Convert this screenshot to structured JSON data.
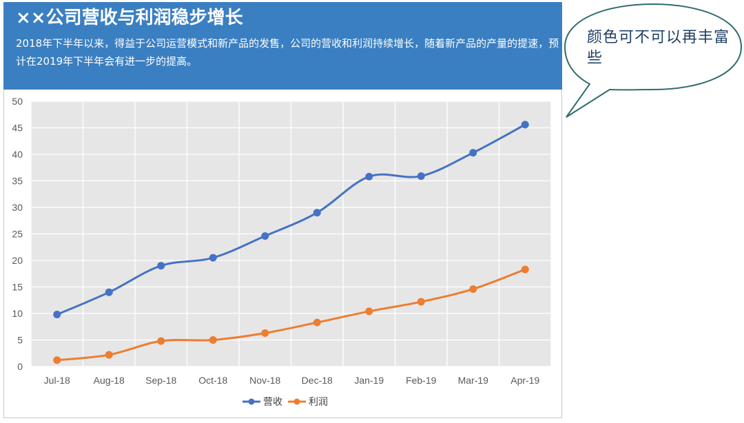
{
  "header": {
    "title": "××公司营收与利润稳步增长",
    "subtitle": "2018年下半年以来，得益于公司运营模式和新产品的发售，公司的营收和利润持续增长，随着新产品的产量的提速，预计在2019年下半年会有进一步的提高。"
  },
  "callout": {
    "text": "颜色可不可以再丰富些"
  },
  "chart_data": {
    "type": "line",
    "categories": [
      "Jul-18",
      "Aug-18",
      "Sep-18",
      "Oct-18",
      "Nov-18",
      "Dec-18",
      "Jan-19",
      "Feb-19",
      "Mar-19",
      "Apr-19"
    ],
    "series": [
      {
        "name": "营收",
        "color": "#4472c4",
        "values": [
          9.8,
          14.0,
          19.0,
          20.5,
          24.6,
          29.0,
          35.8,
          35.9,
          40.3,
          45.6
        ]
      },
      {
        "name": "利润",
        "color": "#ed7d31",
        "values": [
          1.2,
          2.2,
          4.8,
          5.0,
          6.3,
          8.3,
          10.4,
          12.2,
          14.6,
          18.3
        ]
      }
    ],
    "ylim": [
      0,
      50
    ],
    "yticks": [
      0,
      5,
      10,
      15,
      20,
      25,
      30,
      35,
      40,
      45,
      50
    ],
    "grid": true,
    "legend_position": "bottom",
    "plot_background": "#e7e6e6"
  }
}
